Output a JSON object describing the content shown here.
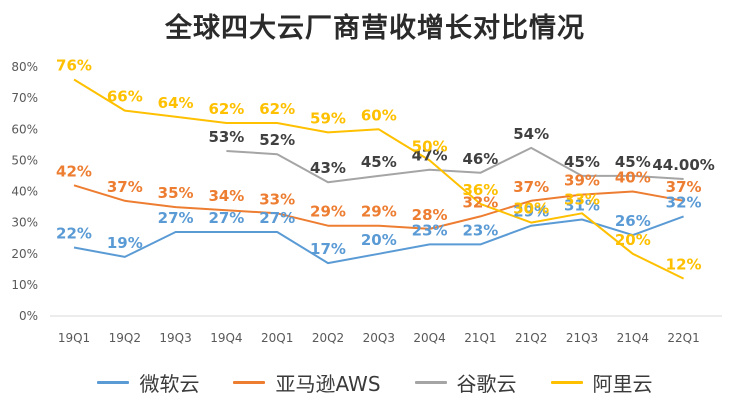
{
  "chart_data": {
    "type": "line",
    "title": "全球四大云厂商营收增长对比情况",
    "categories": [
      "19Q1",
      "19Q2",
      "19Q3",
      "19Q4",
      "20Q1",
      "20Q2",
      "20Q3",
      "20Q4",
      "21Q1",
      "21Q2",
      "21Q3",
      "21Q4",
      "22Q1"
    ],
    "y_ticks": [
      "0%",
      "10%",
      "20%",
      "30%",
      "40%",
      "50%",
      "60%",
      "70%",
      "80%"
    ],
    "ylim": [
      0,
      80
    ],
    "grid": false,
    "legend_position": "bottom",
    "series": [
      {
        "name": "微软云",
        "color": "#5b9bd5",
        "values": [
          22,
          19,
          27,
          27,
          27,
          17,
          20,
          23,
          23,
          29,
          31,
          26,
          32
        ],
        "labels": [
          "22%",
          "19%",
          "27%",
          "27%",
          "27%",
          "17%",
          "20%",
          "23%",
          "23%",
          "29%",
          "31%",
          "26%",
          "32%"
        ]
      },
      {
        "name": "亚马逊AWS",
        "color": "#ed7d31",
        "values": [
          42,
          37,
          35,
          34,
          33,
          29,
          29,
          28,
          32,
          37,
          39,
          40,
          37
        ],
        "labels": [
          "42%",
          "37%",
          "35%",
          "34%",
          "33%",
          "29%",
          "29%",
          "28%",
          "32%",
          "37%",
          "39%",
          "40%",
          "37%"
        ]
      },
      {
        "name": "谷歌云",
        "color": "#a5a5a5",
        "values": [
          null,
          null,
          null,
          53,
          52,
          43,
          45,
          47,
          46,
          54,
          45,
          45,
          44
        ],
        "labels": [
          null,
          null,
          null,
          "53%",
          "52%",
          "43%",
          "45%",
          "47%",
          "46%",
          "54%",
          "45%",
          "45%",
          "44.00%"
        ]
      },
      {
        "name": "阿里云",
        "color": "#ffc000",
        "values": [
          76,
          66,
          64,
          62,
          62,
          59,
          60,
          50,
          36,
          30,
          33,
          20,
          12
        ],
        "labels": [
          "76%",
          "66%",
          "64%",
          "62%",
          "62%",
          "59%",
          "60%",
          "50%",
          "36%",
          "30%",
          "33%",
          "20%",
          "12%"
        ]
      }
    ]
  }
}
